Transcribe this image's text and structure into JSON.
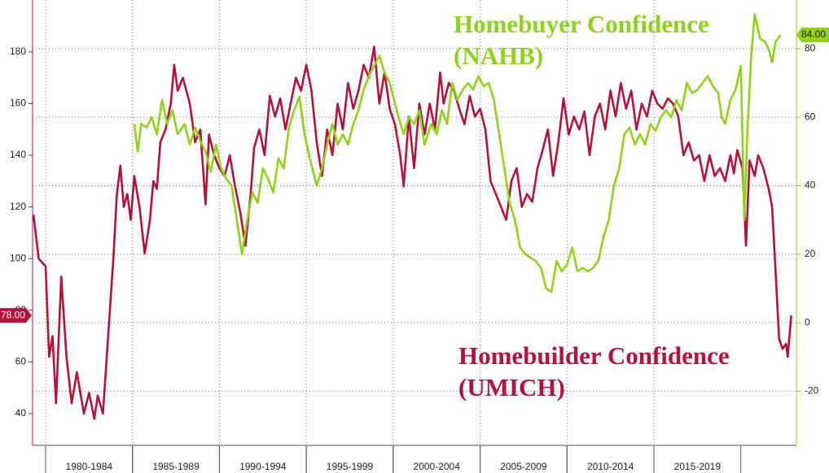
{
  "chart_data": {
    "type": "line",
    "xlim": [
      1979.25,
      2023.2
    ],
    "ylim": [
      27.7,
      200.1
    ],
    "yticks": [
      40,
      60,
      80,
      100,
      120,
      140,
      160,
      180
    ],
    "y2lim": [
      -35.8,
      94.2
    ],
    "y2ticks": [
      -20,
      0,
      20,
      40,
      60,
      80
    ],
    "ycurrent": {
      "value": 78,
      "label": "78.00"
    },
    "y2current": {
      "value": 84,
      "label": "84.00"
    },
    "grid": true,
    "x_bands": [
      {
        "label": "1980-1984",
        "start": 1980,
        "end": 1985
      },
      {
        "label": "1985-1989",
        "start": 1985,
        "end": 1990
      },
      {
        "label": "1990-1994",
        "start": 1990,
        "end": 1995
      },
      {
        "label": "1995-1999",
        "start": 1995,
        "end": 2000
      },
      {
        "label": "2000-2004",
        "start": 2000,
        "end": 2005
      },
      {
        "label": "2005-2009",
        "start": 2005,
        "end": 2010
      },
      {
        "label": "2010-2014",
        "start": 2010,
        "end": 2015
      },
      {
        "label": "2015-2019",
        "start": 2015,
        "end": 2020
      }
    ],
    "series": [
      {
        "label_lines": [
          "Homebuilder Confidence",
          "(UMICH)"
        ],
        "color": "#b3123c",
        "axis": "y",
        "x": [
          1979.3,
          1979.6,
          1980.0,
          1980.2,
          1980.4,
          1980.6,
          1980.9,
          1981.2,
          1981.5,
          1981.8,
          1982.2,
          1982.5,
          1982.8,
          1983.0,
          1983.3,
          1983.6,
          1983.9,
          1984.1,
          1984.3,
          1984.5,
          1984.7,
          1984.9,
          1985.1,
          1985.4,
          1985.7,
          1986.0,
          1986.2,
          1986.4,
          1986.6,
          1986.9,
          1987.2,
          1987.4,
          1987.6,
          1987.9,
          1988.3,
          1988.6,
          1988.9,
          1989.2,
          1989.4,
          1989.7,
          1990.0,
          1990.3,
          1990.6,
          1990.9,
          1991.2,
          1991.5,
          1991.8,
          1992.0,
          1992.3,
          1992.6,
          1992.9,
          1993.2,
          1993.5,
          1993.8,
          1994.1,
          1994.4,
          1994.7,
          1995.0,
          1995.3,
          1995.6,
          1995.9,
          1996.2,
          1996.5,
          1996.8,
          1997.1,
          1997.4,
          1997.7,
          1998.0,
          1998.3,
          1998.6,
          1998.9,
          1999.2,
          1999.5,
          1999.8,
          2000.1,
          2000.4,
          2000.6,
          2000.9,
          2001.2,
          2001.5,
          2001.8,
          2002.1,
          2002.4,
          2002.7,
          2002.9,
          2003.2,
          2003.5,
          2003.8,
          2004.1,
          2004.4,
          2004.7,
          2005.0,
          2005.3,
          2005.6,
          2005.9,
          2006.2,
          2006.5,
          2006.8,
          2007.1,
          2007.4,
          2007.7,
          2008.0,
          2008.3,
          2008.6,
          2008.9,
          2009.2,
          2009.5,
          2009.8,
          2010.1,
          2010.4,
          2010.7,
          2011.0,
          2011.3,
          2011.6,
          2011.9,
          2012.2,
          2012.5,
          2012.8,
          2013.1,
          2013.4,
          2013.7,
          2014.0,
          2014.3,
          2014.6,
          2014.9,
          2015.2,
          2015.5,
          2015.8,
          2016.1,
          2016.4,
          2016.7,
          2017.0,
          2017.3,
          2017.6,
          2017.9,
          2018.2,
          2018.5,
          2018.8,
          2019.1,
          2019.4,
          2019.6,
          2019.8,
          2020.1,
          2020.3,
          2020.5,
          2020.8,
          2021.0,
          2021.3,
          2021.6,
          2021.8,
          2022.0,
          2022.2,
          2022.4,
          2022.6,
          2022.7,
          2022.9
        ],
        "values": [
          117,
          100,
          97,
          62,
          70,
          44,
          93,
          62,
          44,
          56,
          40,
          48,
          38,
          47,
          40,
          70,
          100,
          125,
          136,
          120,
          125,
          115,
          132,
          120,
          102,
          115,
          130,
          127,
          145,
          150,
          160,
          175,
          165,
          170,
          160,
          145,
          150,
          121,
          148,
          140,
          135,
          132,
          140,
          128,
          118,
          105,
          125,
          143,
          150,
          140,
          163,
          155,
          162,
          150,
          160,
          170,
          165,
          175,
          165,
          145,
          132,
          150,
          140,
          160,
          150,
          168,
          158,
          165,
          175,
          170,
          182,
          160,
          172,
          158,
          152,
          140,
          128,
          155,
          135,
          160,
          148,
          160,
          150,
          172,
          160,
          168,
          165,
          158,
          152,
          163,
          155,
          158,
          150,
          130,
          125,
          120,
          115,
          130,
          135,
          120,
          125,
          122,
          135,
          142,
          150,
          132,
          145,
          162,
          148,
          155,
          150,
          157,
          140,
          155,
          160,
          150,
          165,
          155,
          168,
          158,
          165,
          150,
          160,
          155,
          165,
          160,
          158,
          162,
          160,
          155,
          140,
          145,
          138,
          140,
          130,
          140,
          132,
          135,
          130,
          140,
          133,
          142,
          135,
          105,
          138,
          132,
          140,
          135,
          127,
          120,
          95,
          69,
          65,
          67,
          62,
          78
        ]
      },
      {
        "label_lines": [
          "Homebuyer Confidence",
          "(NAHB)"
        ],
        "color": "#8fd11b",
        "axis": "y2",
        "x": [
          1985.1,
          1985.3,
          1985.5,
          1985.8,
          1986.1,
          1986.4,
          1986.7,
          1987.0,
          1987.3,
          1987.6,
          1988.0,
          1988.3,
          1988.6,
          1988.9,
          1989.2,
          1989.5,
          1989.8,
          1990.1,
          1990.4,
          1990.7,
          1991.0,
          1991.3,
          1991.6,
          1991.9,
          1992.2,
          1992.5,
          1992.8,
          1993.1,
          1993.4,
          1993.7,
          1994.0,
          1994.3,
          1994.6,
          1994.9,
          1995.2,
          1995.6,
          1995.9,
          1996.2,
          1996.5,
          1996.8,
          1997.1,
          1997.4,
          1997.7,
          1998.0,
          1998.3,
          1998.6,
          1998.9,
          1999.2,
          1999.5,
          1999.8,
          2000.2,
          2000.6,
          2000.9,
          2001.2,
          2001.5,
          2001.8,
          2002.2,
          2002.5,
          2002.8,
          2003.1,
          2003.4,
          2003.7,
          2004.0,
          2004.3,
          2004.6,
          2004.9,
          2005.2,
          2005.5,
          2005.8,
          2006.1,
          2006.4,
          2006.7,
          2007.0,
          2007.3,
          2007.6,
          2007.9,
          2008.2,
          2008.5,
          2008.8,
          2009.1,
          2009.4,
          2009.7,
          2010.0,
          2010.3,
          2010.6,
          2010.9,
          2011.2,
          2011.5,
          2011.8,
          2012.1,
          2012.4,
          2012.7,
          2013.0,
          2013.3,
          2013.6,
          2013.9,
          2014.2,
          2014.5,
          2014.8,
          2015.1,
          2015.4,
          2015.7,
          2016.0,
          2016.3,
          2016.6,
          2016.9,
          2017.2,
          2017.5,
          2017.8,
          2018.1,
          2018.4,
          2018.7,
          2018.9,
          2019.1,
          2019.4,
          2019.7,
          2020.0,
          2020.2,
          2020.4,
          2020.6,
          2020.8,
          2021.1,
          2021.4,
          2021.6,
          2021.8,
          2022.0,
          2022.3
        ],
        "values": [
          58,
          50,
          58,
          57,
          60,
          55,
          65,
          58,
          62,
          55,
          58,
          52,
          57,
          53,
          50,
          44,
          52,
          45,
          42,
          40,
          30,
          20,
          30,
          38,
          35,
          45,
          42,
          38,
          48,
          45,
          57,
          62,
          66,
          55,
          48,
          40,
          45,
          52,
          58,
          52,
          55,
          52,
          58,
          62,
          68,
          72,
          75,
          78,
          73,
          70,
          62,
          55,
          60,
          58,
          62,
          52,
          58,
          55,
          62,
          58,
          70,
          65,
          68,
          70,
          68,
          72,
          69,
          70,
          65,
          55,
          45,
          35,
          30,
          22,
          20,
          19,
          18,
          16,
          10,
          9,
          18,
          15,
          17,
          22,
          15,
          16,
          15,
          16,
          18,
          25,
          30,
          40,
          45,
          55,
          57,
          52,
          55,
          52,
          58,
          56,
          60,
          62,
          60,
          65,
          62,
          70,
          67,
          68,
          70,
          72,
          69,
          67,
          60,
          58,
          65,
          68,
          75,
          30,
          58,
          78,
          90,
          83,
          82,
          80,
          76,
          82,
          84
        ]
      }
    ]
  }
}
